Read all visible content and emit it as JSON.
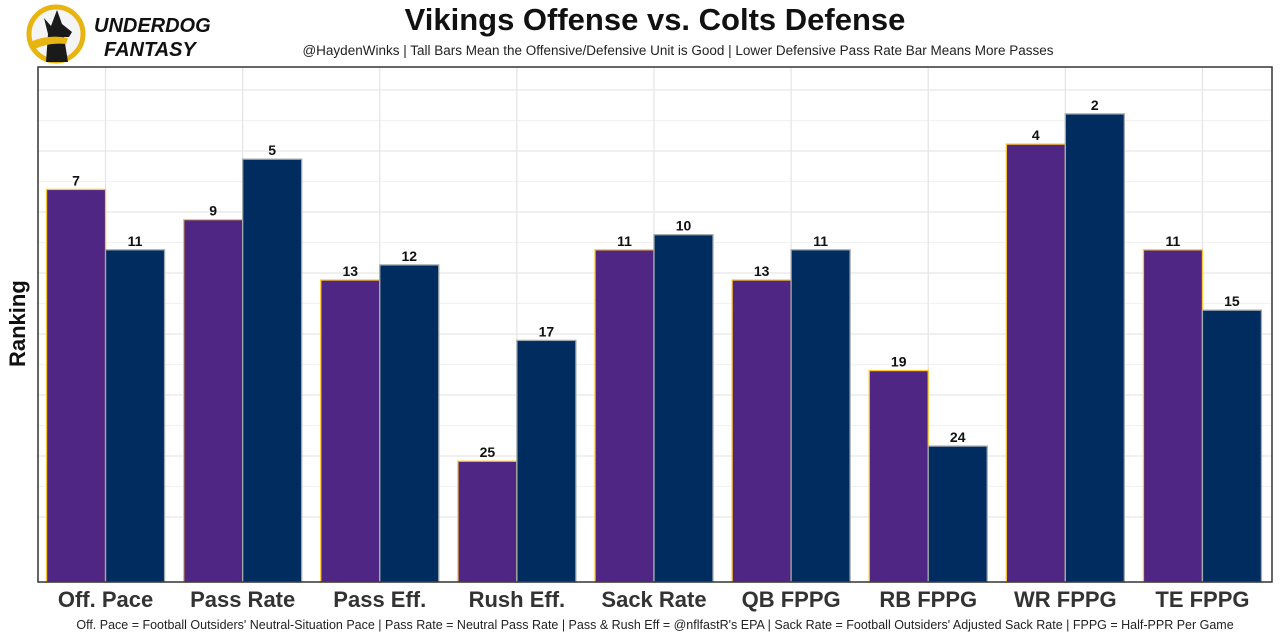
{
  "logo": {
    "line1": "UNDERDOG",
    "line2": "FANTASY",
    "icon": "underdog-dog-icon"
  },
  "chart_data": {
    "type": "bar",
    "title": "Vikings Offense vs. Colts Defense",
    "subtitle": "@HaydenWinks | Tall Bars Mean the Offensive/Defensive Unit is Good | Lower Defensive Pass Rate Bar Means More Passes",
    "caption": "Off. Pace = Football Outsiders' Neutral-Situation Pace | Pass Rate = Neutral Pass Rate | Pass & Rush Eff = @nflfastR's EPA | Sack Rate = Football Outsiders' Adjusted Sack Rate | FPPG = Half-PPR Per Game",
    "xlabel": "",
    "ylabel": "Ranking",
    "y_scale_note": "bar height = 33 - rank (rank 1 is tallest)",
    "ylim_height_units": [
      0,
      34.3
    ],
    "grid": true,
    "categories": [
      "Off. Pace",
      "Pass Rate",
      "Pass Eff.",
      "Rush Eff.",
      "Sack Rate",
      "QB FPPG",
      "RB FPPG",
      "WR FPPG",
      "TE FPPG"
    ],
    "series": [
      {
        "name": "Vikings Offense",
        "color": "#4F2683",
        "outline": "#FFC62F",
        "values": [
          7,
          9,
          13,
          25,
          11,
          13,
          19,
          4,
          11
        ]
      },
      {
        "name": "Colts Defense",
        "color": "#002C5F",
        "outline": "#A2AAAD",
        "values": [
          11,
          5,
          12,
          17,
          10,
          11,
          24,
          2,
          15
        ]
      }
    ]
  }
}
